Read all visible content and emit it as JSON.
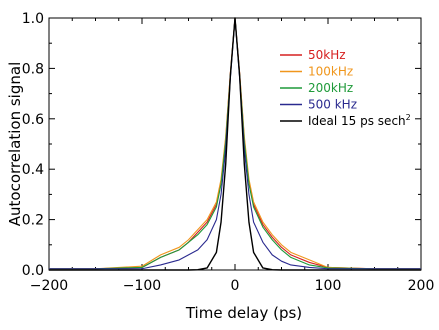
{
  "chart_data": {
    "type": "line",
    "title": "",
    "xlabel": "Time delay (ps)",
    "ylabel": "Autocorrelation signal",
    "xlim": [
      -200,
      200
    ],
    "ylim": [
      0,
      1.0
    ],
    "xticks": [
      -200,
      -100,
      0,
      100,
      200
    ],
    "xtick_labels": [
      "−200",
      "−100",
      "0",
      "100",
      "200"
    ],
    "yticks": [
      0.0,
      0.2,
      0.4,
      0.6,
      0.8,
      1.0
    ],
    "ytick_labels": [
      "0.0",
      "0.2",
      "0.4",
      "0.6",
      "0.8",
      "1.0"
    ],
    "grid": false,
    "legend_position": "top-right",
    "x": [
      -200,
      -150,
      -100,
      -80,
      -60,
      -50,
      -40,
      -30,
      -20,
      -15,
      -10,
      -5,
      0,
      5,
      10,
      15,
      20,
      30,
      40,
      50,
      60,
      80,
      100,
      150,
      200
    ],
    "series": [
      {
        "name": "50kHz",
        "color": "#d62020",
        "values": [
          0.005,
          0.005,
          0.01,
          0.05,
          0.08,
          0.11,
          0.15,
          0.19,
          0.26,
          0.35,
          0.52,
          0.78,
          1.0,
          0.78,
          0.52,
          0.35,
          0.26,
          0.18,
          0.13,
          0.09,
          0.06,
          0.03,
          0.01,
          0.005,
          0.005
        ]
      },
      {
        "name": "100kHz",
        "color": "#f0961c",
        "values": [
          0.005,
          0.005,
          0.015,
          0.06,
          0.09,
          0.12,
          0.16,
          0.2,
          0.27,
          0.36,
          0.53,
          0.78,
          1.0,
          0.78,
          0.53,
          0.36,
          0.27,
          0.19,
          0.14,
          0.1,
          0.07,
          0.04,
          0.01,
          0.005,
          0.005
        ]
      },
      {
        "name": "200kHz",
        "color": "#1f9a3a",
        "values": [
          0.005,
          0.005,
          0.01,
          0.05,
          0.08,
          0.11,
          0.14,
          0.18,
          0.25,
          0.34,
          0.51,
          0.77,
          1.0,
          0.77,
          0.51,
          0.34,
          0.25,
          0.17,
          0.12,
          0.08,
          0.05,
          0.02,
          0.008,
          0.005,
          0.005
        ]
      },
      {
        "name": "500 kHz",
        "color": "#2a2a8f",
        "values": [
          0.005,
          0.005,
          0.005,
          0.02,
          0.04,
          0.06,
          0.08,
          0.12,
          0.2,
          0.3,
          0.48,
          0.76,
          1.0,
          0.76,
          0.48,
          0.3,
          0.19,
          0.11,
          0.06,
          0.035,
          0.02,
          0.01,
          0.005,
          0.005,
          0.005
        ]
      },
      {
        "name": "Ideal 15 ps sech",
        "name_superscript": "2",
        "color": "#000000",
        "values": [
          0.0,
          0.0,
          0.0,
          0.0,
          0.0,
          0.0,
          0.001,
          0.008,
          0.07,
          0.19,
          0.42,
          0.77,
          1.0,
          0.77,
          0.42,
          0.19,
          0.07,
          0.008,
          0.001,
          0.0,
          0.0,
          0.0,
          0.0,
          0.0,
          0.0
        ]
      }
    ]
  }
}
